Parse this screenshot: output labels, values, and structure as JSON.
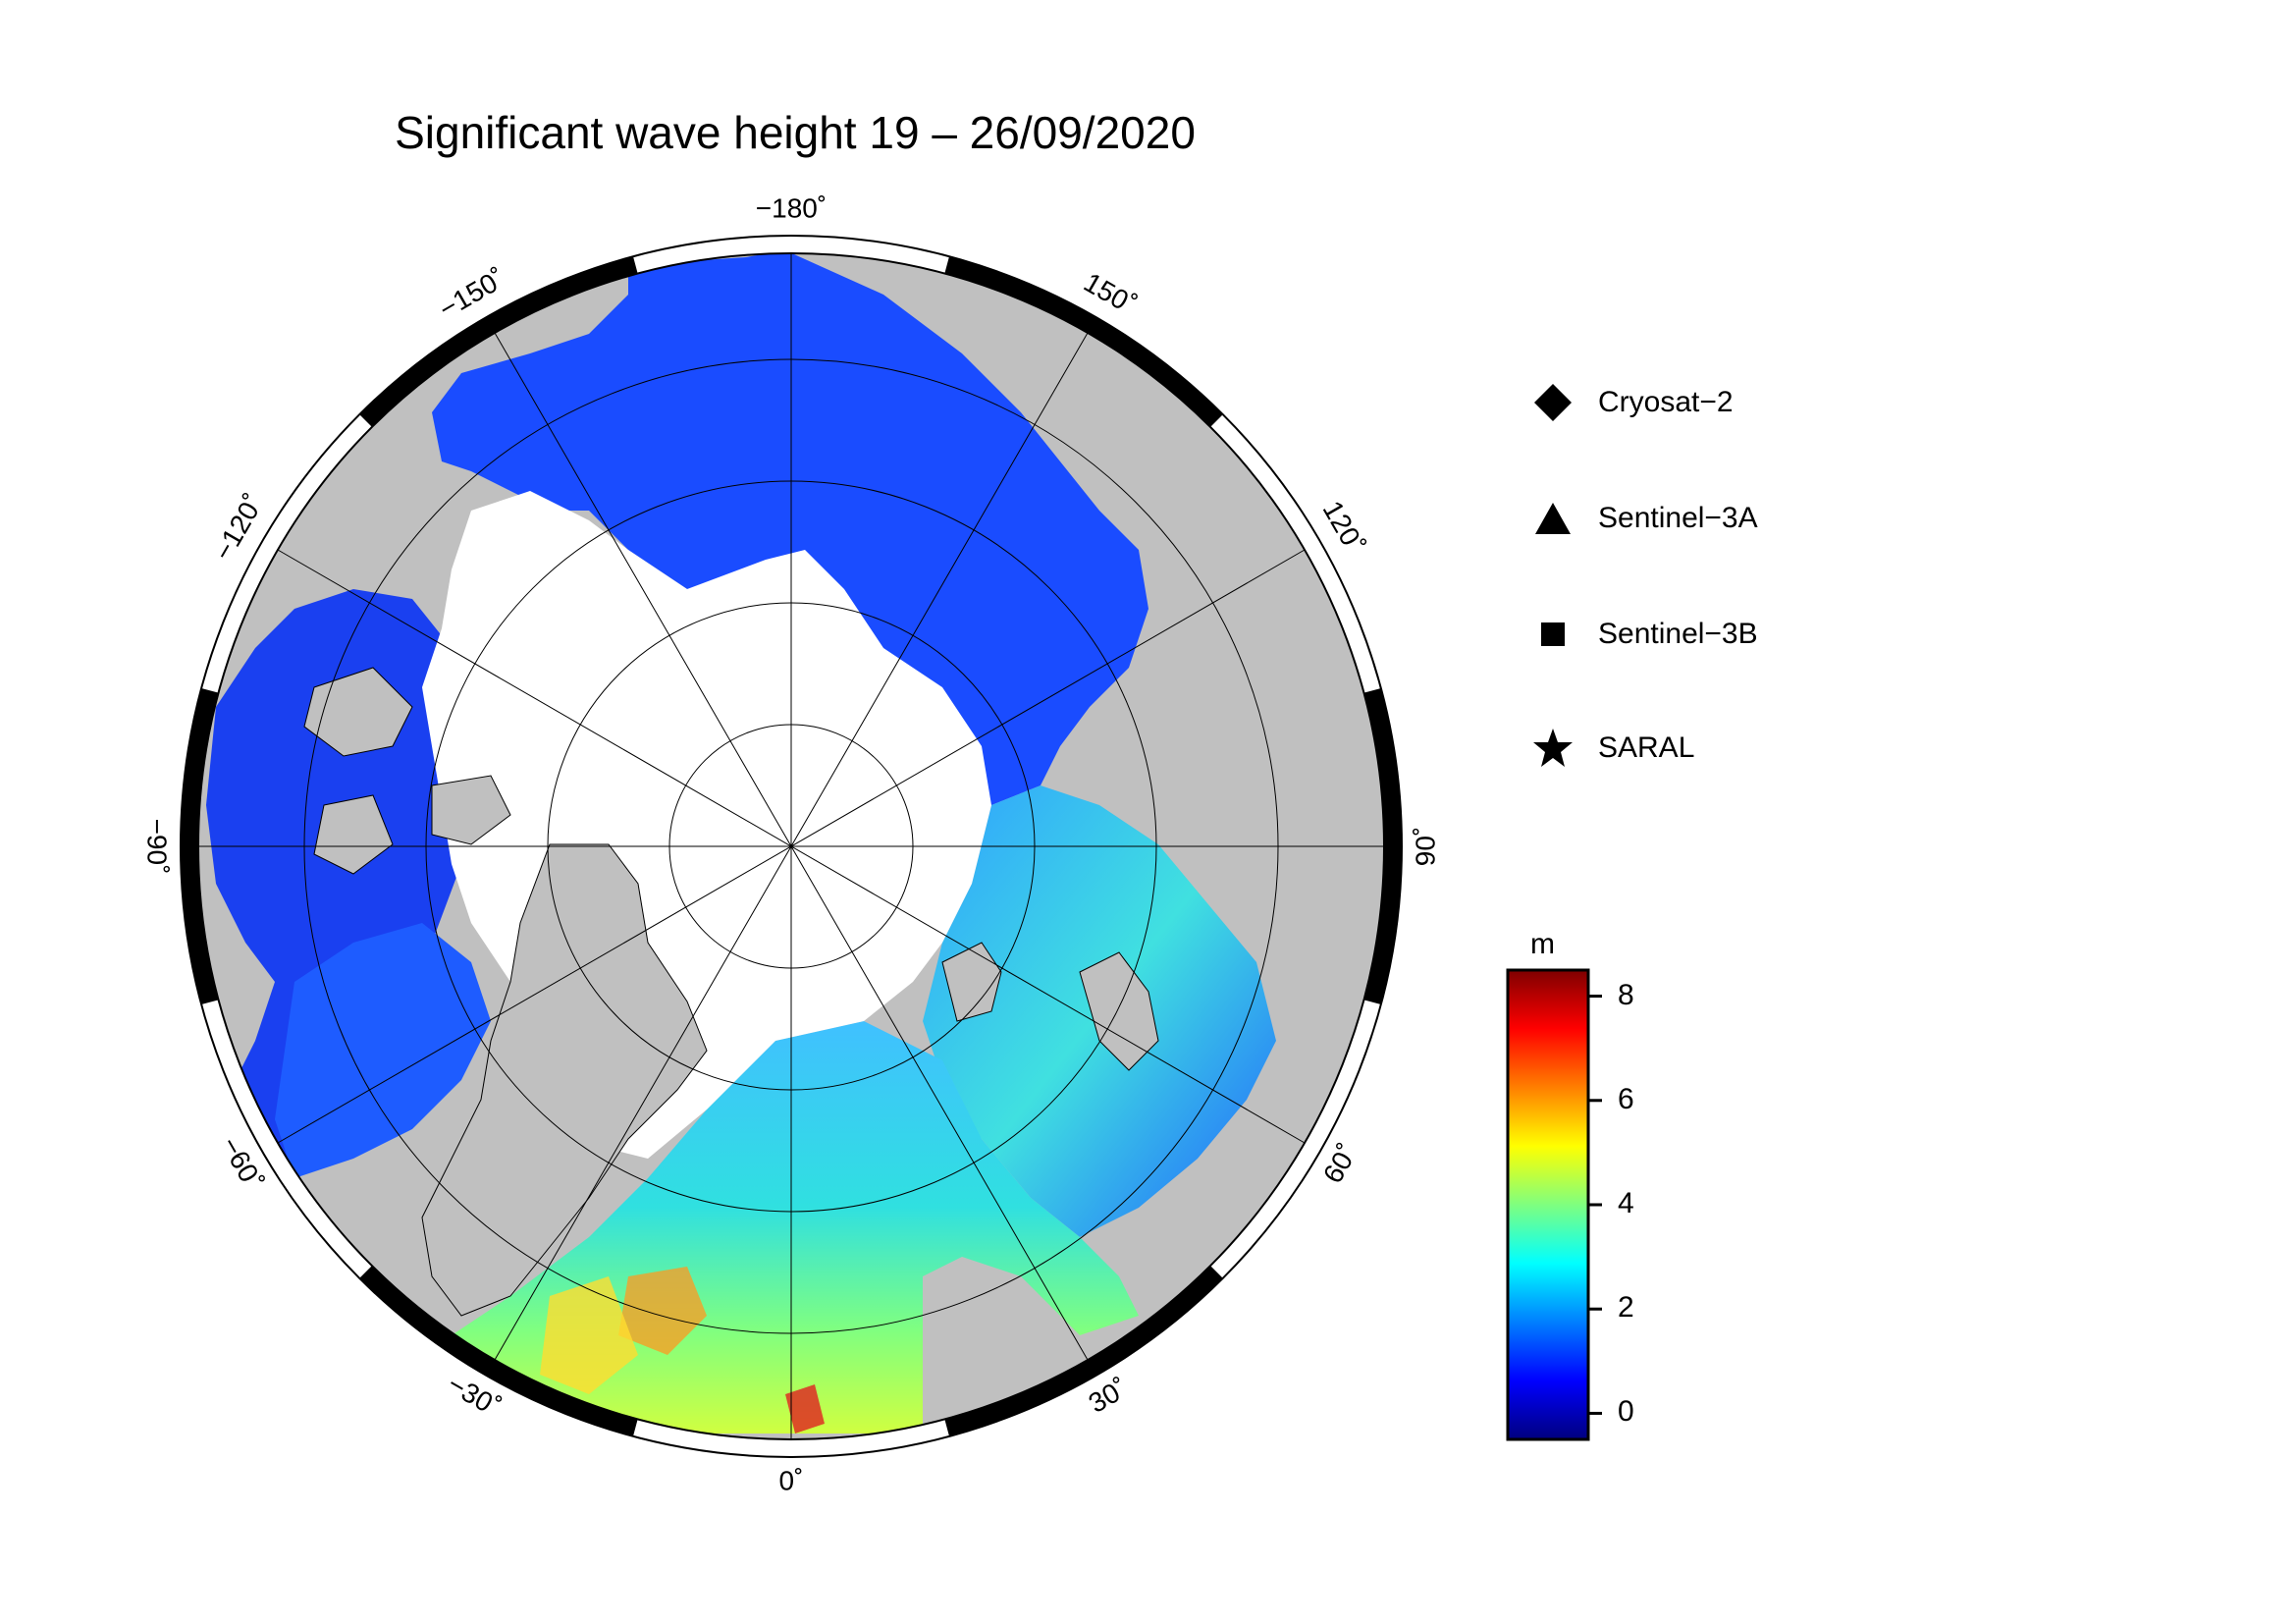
{
  "title": "Significant wave height 19 – 26/09/2020",
  "longitude_labels": [
    {
      "deg": -180,
      "text": "−180˚"
    },
    {
      "deg": 150,
      "text": "150˚"
    },
    {
      "deg": 120,
      "text": "120˚"
    },
    {
      "deg": 90,
      "text": "90˚"
    },
    {
      "deg": 60,
      "text": "60˚"
    },
    {
      "deg": 30,
      "text": "30˚"
    },
    {
      "deg": 0,
      "text": "0˚"
    },
    {
      "deg": -30,
      "text": "−30˚"
    },
    {
      "deg": -60,
      "text": "−60˚"
    },
    {
      "deg": -90,
      "text": "−90˚"
    },
    {
      "deg": -120,
      "text": "−120˚"
    },
    {
      "deg": -150,
      "text": "−150˚"
    }
  ],
  "legend": {
    "items": [
      {
        "label": "Cryosat−2",
        "symbol": "diamond-icon"
      },
      {
        "label": "Sentinel−3A",
        "symbol": "triangle-icon"
      },
      {
        "label": "Sentinel−3B",
        "symbol": "square-icon"
      },
      {
        "label": "SARAL",
        "symbol": "star-icon"
      }
    ]
  },
  "colorbar": {
    "unit": "m",
    "min": -0.5,
    "max": 8.5,
    "ticks": [
      {
        "value": 8,
        "text": "8"
      },
      {
        "value": 6,
        "text": "6"
      },
      {
        "value": 4,
        "text": "4"
      },
      {
        "value": 2,
        "text": "2"
      },
      {
        "value": 0,
        "text": "0"
      }
    ],
    "colors": [
      "#00007f",
      "#0000ff",
      "#007fff",
      "#00ffff",
      "#7fff7f",
      "#ffff00",
      "#ff7f00",
      "#ff0000",
      "#7f0000"
    ]
  },
  "colors": {
    "land": "#c0c0c0",
    "sea_ice": "#ffffff",
    "frame": "#000000"
  }
}
